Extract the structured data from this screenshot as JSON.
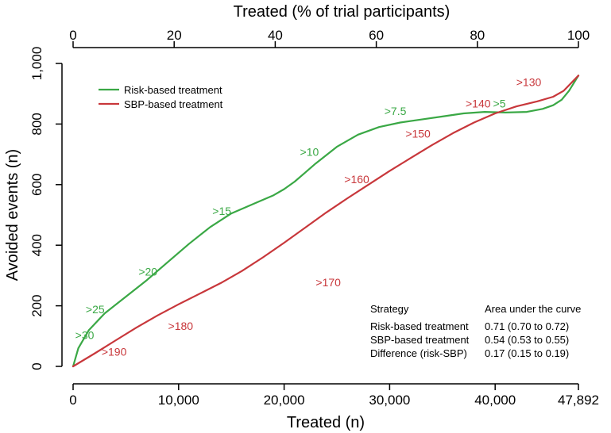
{
  "chart_data": {
    "type": "line",
    "top_axis": {
      "label": "Treated (% of trial participants)",
      "ticks": [
        0,
        20,
        40,
        60,
        80,
        100
      ],
      "tick_labels": [
        "0",
        "20",
        "40",
        "60",
        "80",
        "100"
      ]
    },
    "xlabel": "Treated (n)",
    "ylabel": "Avoided events (n)",
    "xlim": [
      0,
      47892
    ],
    "ylim": [
      0,
      1000
    ],
    "x_ticks": [
      0,
      10000,
      20000,
      30000,
      40000,
      47892
    ],
    "x_tick_labels": [
      "0",
      "10,000",
      "20,000",
      "30,000",
      "40,000",
      "47,892"
    ],
    "y_ticks": [
      0,
      200,
      400,
      600,
      800,
      1000
    ],
    "y_tick_labels": [
      "0",
      "200",
      "400",
      "600",
      "800",
      "1,000"
    ],
    "grid": false,
    "legend_position": "top-left",
    "series": [
      {
        "name": "Risk-based treatment",
        "color": "#3aa845",
        "points": [
          [
            0,
            0
          ],
          [
            500,
            60
          ],
          [
            1500,
            120
          ],
          [
            3000,
            175
          ],
          [
            5000,
            230
          ],
          [
            7000,
            285
          ],
          [
            9000,
            345
          ],
          [
            11000,
            405
          ],
          [
            13000,
            460
          ],
          [
            15000,
            505
          ],
          [
            17000,
            535
          ],
          [
            19000,
            565
          ],
          [
            20000,
            585
          ],
          [
            21000,
            610
          ],
          [
            23000,
            670
          ],
          [
            25000,
            725
          ],
          [
            27000,
            765
          ],
          [
            29000,
            790
          ],
          [
            31000,
            805
          ],
          [
            33000,
            815
          ],
          [
            35000,
            825
          ],
          [
            37000,
            835
          ],
          [
            39000,
            840
          ],
          [
            41000,
            838
          ],
          [
            43000,
            840
          ],
          [
            44500,
            850
          ],
          [
            45500,
            862
          ],
          [
            46300,
            880
          ],
          [
            47000,
            910
          ],
          [
            47892,
            960
          ]
        ],
        "annotations": [
          {
            "text": ">30",
            "x": 200,
            "y": 90
          },
          {
            "text": ">25",
            "x": 1200,
            "y": 175
          },
          {
            "text": ">20",
            "x": 6200,
            "y": 300
          },
          {
            "text": ">15",
            "x": 13200,
            "y": 500
          },
          {
            "text": ">10",
            "x": 21500,
            "y": 695
          },
          {
            "text": ">7.5",
            "x": 29500,
            "y": 830
          },
          {
            "text": ">5",
            "x": 39800,
            "y": 855
          }
        ]
      },
      {
        "name": "SBP-based treatment",
        "color": "#c8373b",
        "points": [
          [
            0,
            0
          ],
          [
            2000,
            42
          ],
          [
            4000,
            85
          ],
          [
            6000,
            128
          ],
          [
            8000,
            168
          ],
          [
            10000,
            205
          ],
          [
            12000,
            240
          ],
          [
            14000,
            275
          ],
          [
            16000,
            315
          ],
          [
            18000,
            360
          ],
          [
            20000,
            408
          ],
          [
            22000,
            458
          ],
          [
            24000,
            508
          ],
          [
            26000,
            555
          ],
          [
            28000,
            600
          ],
          [
            30000,
            645
          ],
          [
            32000,
            688
          ],
          [
            34000,
            730
          ],
          [
            36000,
            770
          ],
          [
            38000,
            805
          ],
          [
            40000,
            835
          ],
          [
            42000,
            858
          ],
          [
            44000,
            875
          ],
          [
            45500,
            890
          ],
          [
            46500,
            910
          ],
          [
            47892,
            960
          ]
        ],
        "annotations": [
          {
            "text": ">190",
            "x": 2700,
            "y": 35
          },
          {
            "text": ">180",
            "x": 9000,
            "y": 120
          },
          {
            "text": ">170",
            "x": 23000,
            "y": 265
          },
          {
            "text": ">160",
            "x": 25700,
            "y": 605
          },
          {
            "text": ">150",
            "x": 31500,
            "y": 755
          },
          {
            "text": ">140",
            "x": 37200,
            "y": 855
          },
          {
            "text": ">130",
            "x": 42000,
            "y": 925
          }
        ]
      }
    ],
    "auc_table": {
      "headers": [
        "Strategy",
        "Area under the curve"
      ],
      "rows": [
        [
          "Risk-based treatment",
          "0.71 (0.70 to 0.72)"
        ],
        [
          "SBP-based treatment",
          "0.54 (0.53 to 0.55)"
        ],
        [
          "Difference (risk-SBP)",
          "0.17 (0.15 to 0.19)"
        ]
      ]
    }
  }
}
